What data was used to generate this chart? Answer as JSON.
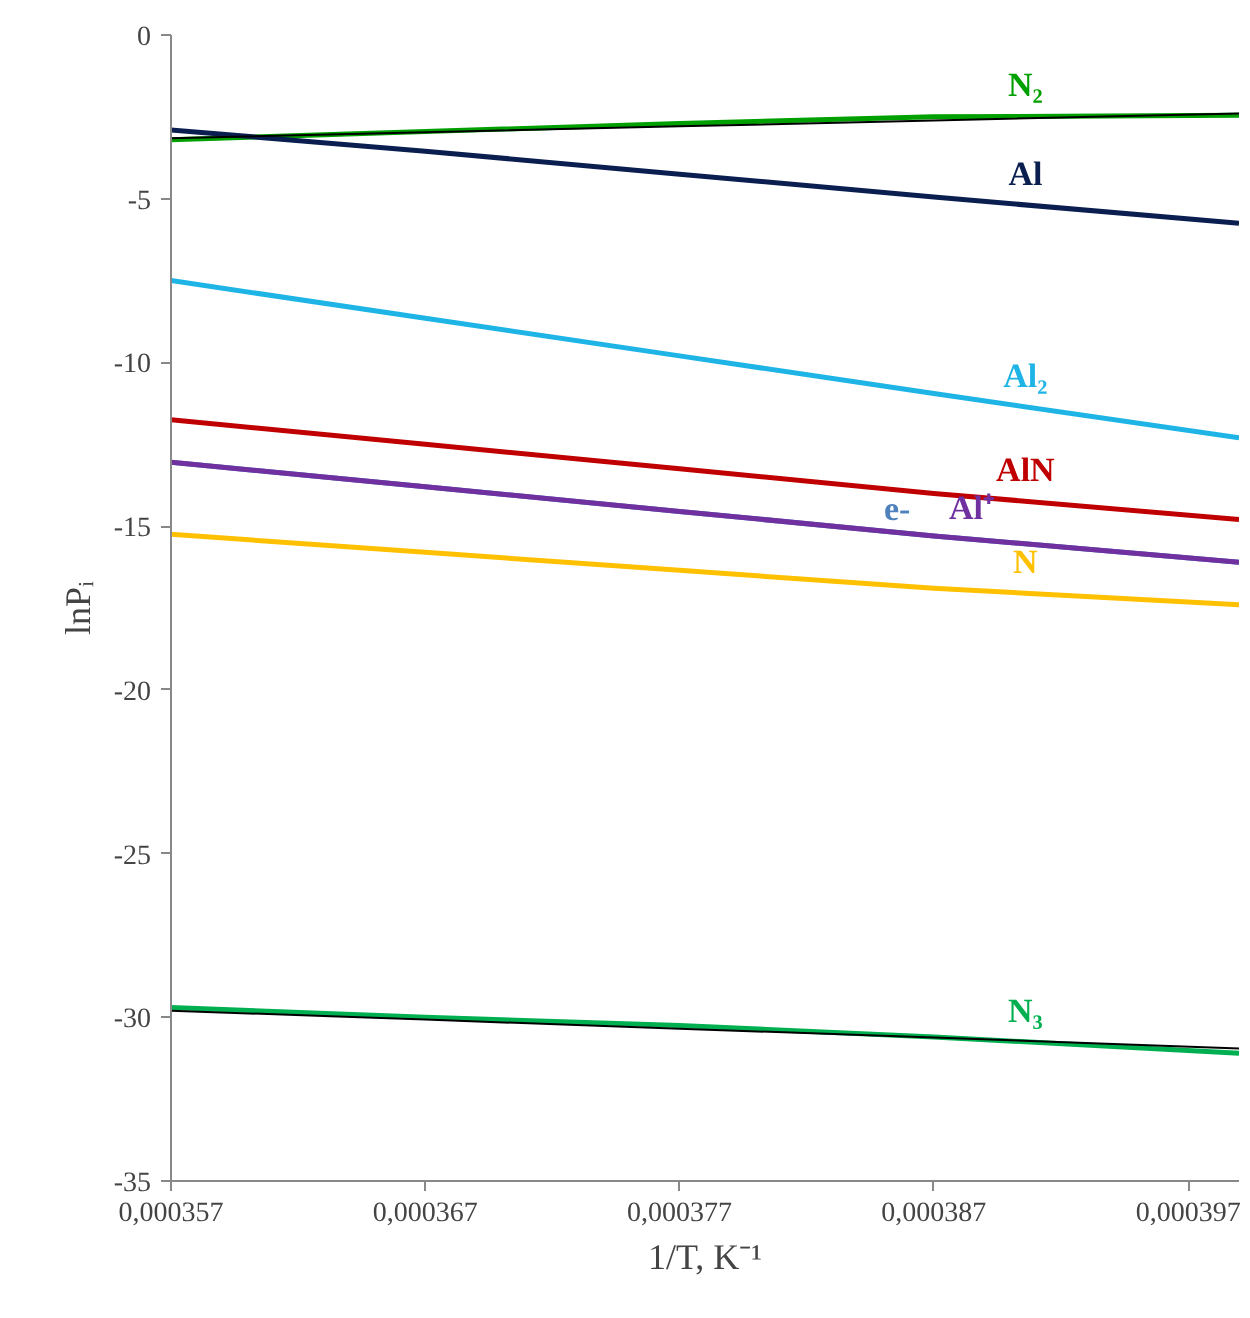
{
  "chart_data": {
    "type": "line",
    "xlabel": "1/T, K⁻¹",
    "ylabel": "lnPᵢ",
    "xlim": [
      0.000357,
      0.000399
    ],
    "ylim": [
      -35,
      0
    ],
    "xticks": [
      {
        "value": 0.000357,
        "label": "0,000357"
      },
      {
        "value": 0.000367,
        "label": "0,000367"
      },
      {
        "value": 0.000377,
        "label": "0,000377"
      },
      {
        "value": 0.000387,
        "label": "0,000387"
      },
      {
        "value": 0.000397,
        "label": "0,000397"
      }
    ],
    "yticks": [
      -35,
      -30,
      -25,
      -20,
      -15,
      -10,
      -5,
      0
    ],
    "x": [
      0.000357,
      0.000367,
      0.000377,
      0.000387,
      0.000399
    ],
    "grid": false,
    "legend": false,
    "marker": "none",
    "line_style": "solid",
    "series": [
      {
        "name": "N₂",
        "color": "#00a000",
        "values": [
          -3.2,
          -2.95,
          -2.7,
          -2.5,
          -2.45
        ]
      },
      {
        "name": "Al",
        "color": "#0a1f50",
        "values": [
          -2.9,
          -3.55,
          -4.25,
          -4.95,
          -5.75
        ]
      },
      {
        "name": "Al₂",
        "color": "#1eb4e6",
        "values": [
          -7.5,
          -8.65,
          -9.8,
          -10.95,
          -12.3
        ]
      },
      {
        "name": "AlN",
        "color": "#c00000",
        "values": [
          -11.75,
          -12.5,
          -13.25,
          -14.0,
          -14.8
        ]
      },
      {
        "name": "e-",
        "color": "#4f81bd",
        "values": [
          -13.05,
          -13.8,
          -14.55,
          -15.3,
          -16.1
        ]
      },
      {
        "name": "Al⁺",
        "color": "#7030a0",
        "values": [
          -13.05,
          -13.8,
          -14.55,
          -15.3,
          -16.1
        ]
      },
      {
        "name": "N",
        "color": "#ffc000",
        "values": [
          -15.25,
          -15.8,
          -16.35,
          -16.9,
          -17.4
        ]
      },
      {
        "name": "N₃",
        "color": "#00b050",
        "values": [
          -29.7,
          -30.0,
          -30.25,
          -30.6,
          -31.1
        ]
      },
      {
        "color": "#000000",
        "values": [
          -3.15,
          -2.97,
          -2.79,
          -2.61,
          -2.4
        ]
      },
      {
        "color": "#000000",
        "values": [
          -29.8,
          -30.07,
          -30.35,
          -30.62,
          -30.95
        ]
      }
    ]
  }
}
